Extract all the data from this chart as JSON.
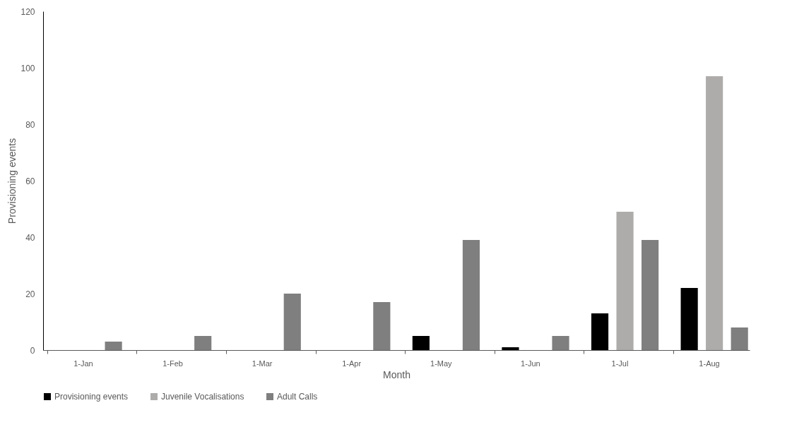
{
  "chart_data": {
    "type": "bar",
    "xlabel": "Month",
    "ylabel": "Provisioning events",
    "categories": [
      "1-Jan",
      "1-Feb",
      "1-Mar",
      "1-Apr",
      "1-May",
      "1-Jun",
      "1-Jul",
      "1-Aug"
    ],
    "series": [
      {
        "name": "Provisioning events",
        "color": "#000000",
        "values": [
          0,
          0,
          0,
          0,
          5,
          1,
          13,
          22
        ]
      },
      {
        "name": "Juvenile Vocalisations",
        "color": "#aeacab",
        "values": [
          0,
          0,
          0,
          0,
          0,
          0,
          49,
          97
        ]
      },
      {
        "name": "Adult Calls",
        "color": "#7f7f7f",
        "values": [
          3,
          5,
          20,
          17,
          39,
          5,
          39,
          8
        ]
      }
    ],
    "ylim": [
      0,
      120
    ],
    "yticks": [
      0,
      20,
      40,
      60,
      80,
      100,
      120
    ],
    "grid": false,
    "legend": "bottom"
  }
}
